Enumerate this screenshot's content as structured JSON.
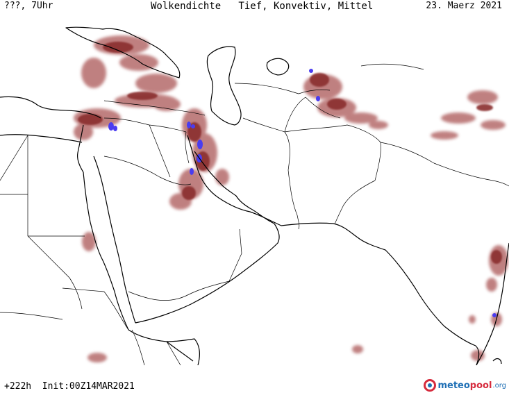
{
  "header": {
    "left": "???, 7Uhr",
    "title": "Wolkendichte   Tief, Konvektiv, Mittel",
    "date": "23. Maerz 2021"
  },
  "footer": {
    "run": "+222h  Init:00Z14MAR2021",
    "logo_part1": "meteo",
    "logo_part2": "pool",
    "logo_part3": ".org"
  },
  "map": {
    "region": "Middle East / South Asia",
    "colors": {
      "background": "#ffffff",
      "coastline": "#000000",
      "border": "#000000",
      "cloud_light": "#c98a8a",
      "cloud_medium": "#a35252",
      "cloud_dense": "#8a2f2f",
      "convective": "#4a3cf0"
    }
  }
}
